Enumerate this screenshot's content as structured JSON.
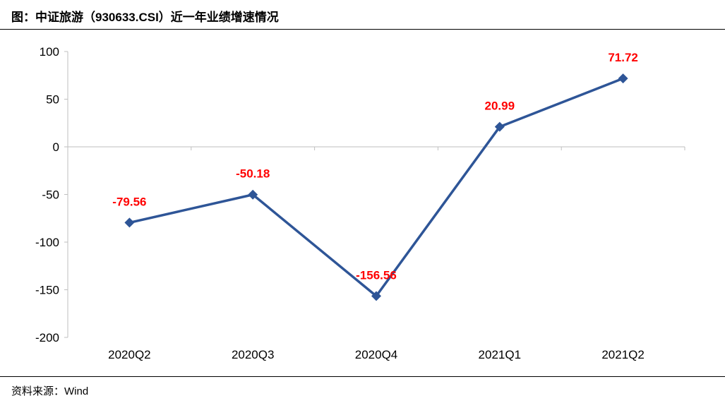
{
  "header": {
    "title": "图：中证旅游（930633.CSI）近一年业绩增速情况"
  },
  "footer": {
    "source": "资料来源：Wind"
  },
  "chart_data": {
    "type": "line",
    "title": "图：中证旅游（930633.CSI）近一年业绩增速情况",
    "xlabel": "",
    "ylabel": "",
    "categories": [
      "2020Q2",
      "2020Q3",
      "2020Q4",
      "2021Q1",
      "2021Q2"
    ],
    "series": [
      {
        "values": [
          -79.56,
          -50.18,
          -156.56,
          20.99,
          71.72
        ],
        "color": "#2e5597",
        "marker": "diamond"
      }
    ],
    "data_labels": [
      "-79.56",
      "-50.18",
      "-156.56",
      "20.99",
      "71.72"
    ],
    "data_label_color": "#ff0000",
    "ylim": [
      -200,
      100
    ],
    "yticks": [
      100,
      50,
      0,
      -50,
      -100,
      -150,
      -200
    ],
    "grid": false,
    "legend": "none"
  }
}
